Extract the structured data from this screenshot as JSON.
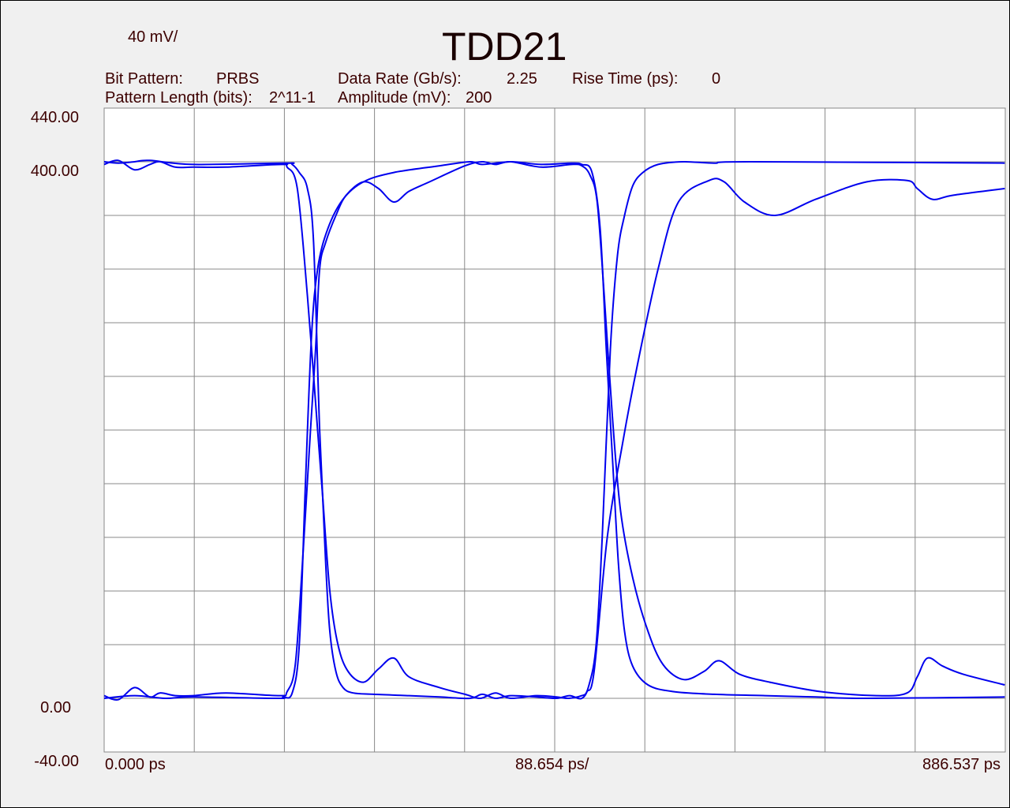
{
  "header": {
    "scale": "40 mV/",
    "title": "TDD21",
    "bit_pattern_label": "Bit Pattern:",
    "bit_pattern_value": "PRBS",
    "data_rate_label": "Data Rate (Gb/s):",
    "data_rate_value": "2.25",
    "rise_time_label": "Rise Time (ps):",
    "rise_time_value": "0",
    "pattern_length_label": "Pattern Length (bits):",
    "pattern_length_value": "2^11-1",
    "amplitude_label": "Amplitude (mV):",
    "amplitude_value": "200"
  },
  "colors": {
    "trace": "#0000ee",
    "grid": "#888888",
    "plot_bg": "#ffffff",
    "page_bg": "#f0f0f0",
    "text": "#3c0000"
  },
  "chart_data": {
    "type": "line",
    "title": "TDD21",
    "ylim": [
      -40,
      440
    ],
    "xlim": [
      0,
      886.537
    ],
    "y_tick_labels": [
      "440.00",
      "400.00",
      "0.00",
      "-40.00"
    ],
    "x_tick_labels": [
      "0.000 ps",
      "88.654 ps/",
      "886.537 ps"
    ],
    "grid": true,
    "series": [
      {
        "values_xy": [
          [
            0,
            398
          ],
          [
            14,
            401
          ],
          [
            30,
            394
          ],
          [
            45,
            398
          ],
          [
            55,
            400
          ],
          [
            70,
            396
          ],
          [
            88,
            396
          ],
          [
            120,
            396
          ],
          [
            175,
            398
          ],
          [
            180,
            396
          ],
          [
            190,
            380
          ],
          [
            200,
            300
          ],
          [
            210,
            200
          ],
          [
            215,
            150
          ],
          [
            222,
            80
          ],
          [
            230,
            40
          ],
          [
            240,
            20
          ],
          [
            255,
            12
          ],
          [
            270,
            22
          ],
          [
            285,
            30
          ],
          [
            300,
            16
          ],
          [
            330,
            8
          ],
          [
            355,
            3
          ],
          [
            370,
            0
          ],
          [
            385,
            4
          ],
          [
            400,
            0
          ],
          [
            425,
            2
          ],
          [
            445,
            1
          ],
          [
            457,
            0
          ],
          [
            470,
            2
          ],
          [
            475,
            5
          ],
          [
            482,
            20
          ],
          [
            495,
            120
          ],
          [
            510,
            190
          ],
          [
            525,
            250
          ],
          [
            545,
            320
          ],
          [
            565,
            370
          ],
          [
            595,
            386
          ],
          [
            610,
            385
          ],
          [
            630,
            370
          ],
          [
            660,
            360
          ],
          [
            700,
            372
          ],
          [
            750,
            385
          ],
          [
            790,
            386
          ],
          [
            800,
            380
          ],
          [
            815,
            372
          ],
          [
            835,
            375
          ],
          [
            886,
            380
          ]
        ]
      },
      {
        "values_xy": [
          [
            0,
            400
          ],
          [
            14,
            399
          ],
          [
            30,
            400
          ],
          [
            45,
            401
          ],
          [
            88,
            398
          ],
          [
            178,
            399
          ],
          [
            185,
            398
          ],
          [
            192,
            392
          ],
          [
            200,
            380
          ],
          [
            206,
            340
          ],
          [
            212,
            200
          ],
          [
            218,
            100
          ],
          [
            222,
            50
          ],
          [
            228,
            20
          ],
          [
            235,
            8
          ],
          [
            245,
            4
          ],
          [
            265,
            3
          ],
          [
            300,
            2
          ],
          [
            330,
            1
          ],
          [
            360,
            0
          ],
          [
            372,
            3
          ],
          [
            385,
            0
          ],
          [
            400,
            2
          ],
          [
            425,
            1
          ],
          [
            445,
            0
          ],
          [
            458,
            2
          ],
          [
            470,
            0
          ],
          [
            477,
            10
          ],
          [
            484,
            40
          ],
          [
            490,
            120
          ],
          [
            498,
            260
          ],
          [
            505,
            330
          ],
          [
            512,
            360
          ],
          [
            520,
            382
          ],
          [
            530,
            392
          ],
          [
            545,
            398
          ],
          [
            570,
            400
          ],
          [
            600,
            399
          ],
          [
            635,
            400
          ],
          [
            886,
            399
          ]
        ]
      },
      {
        "values_xy": [
          [
            0,
            2
          ],
          [
            14,
            -1
          ],
          [
            30,
            8
          ],
          [
            45,
            1
          ],
          [
            55,
            4
          ],
          [
            70,
            2
          ],
          [
            88,
            2
          ],
          [
            120,
            4
          ],
          [
            172,
            2
          ],
          [
            180,
            5
          ],
          [
            188,
            25
          ],
          [
            195,
            100
          ],
          [
            203,
            200
          ],
          [
            208,
            260
          ],
          [
            212,
            320
          ],
          [
            218,
            340
          ],
          [
            228,
            360
          ],
          [
            238,
            375
          ],
          [
            255,
            385
          ],
          [
            270,
            380
          ],
          [
            285,
            370
          ],
          [
            300,
            378
          ],
          [
            320,
            385
          ],
          [
            355,
            397
          ],
          [
            372,
            400
          ],
          [
            385,
            398
          ],
          [
            400,
            400
          ],
          [
            430,
            396
          ],
          [
            460,
            398
          ],
          [
            470,
            397
          ],
          [
            478,
            390
          ],
          [
            485,
            370
          ],
          [
            492,
            300
          ],
          [
            500,
            210
          ],
          [
            508,
            140
          ],
          [
            520,
            90
          ],
          [
            535,
            50
          ],
          [
            550,
            25
          ],
          [
            570,
            14
          ],
          [
            590,
            20
          ],
          [
            605,
            28
          ],
          [
            625,
            18
          ],
          [
            655,
            12
          ],
          [
            705,
            5
          ],
          [
            760,
            2
          ],
          [
            790,
            4
          ],
          [
            800,
            16
          ],
          [
            810,
            30
          ],
          [
            825,
            24
          ],
          [
            845,
            18
          ],
          [
            886,
            10
          ]
        ]
      },
      {
        "values_xy": [
          [
            0,
            0
          ],
          [
            30,
            2
          ],
          [
            60,
            0
          ],
          [
            88,
            1
          ],
          [
            170,
            0
          ],
          [
            176,
            1
          ],
          [
            185,
            4
          ],
          [
            192,
            40
          ],
          [
            198,
            160
          ],
          [
            204,
            270
          ],
          [
            210,
            320
          ],
          [
            220,
            350
          ],
          [
            235,
            372
          ],
          [
            255,
            385
          ],
          [
            285,
            392
          ],
          [
            330,
            397
          ],
          [
            360,
            400
          ],
          [
            372,
            398
          ],
          [
            400,
            400
          ],
          [
            430,
            398
          ],
          [
            460,
            399
          ],
          [
            470,
            398
          ],
          [
            480,
            392
          ],
          [
            488,
            350
          ],
          [
            494,
            260
          ],
          [
            500,
            180
          ],
          [
            506,
            100
          ],
          [
            512,
            50
          ],
          [
            520,
            24
          ],
          [
            535,
            10
          ],
          [
            560,
            5
          ],
          [
            600,
            3
          ],
          [
            650,
            2
          ],
          [
            700,
            1
          ],
          [
            750,
            0
          ],
          [
            886,
            1
          ]
        ]
      }
    ]
  }
}
